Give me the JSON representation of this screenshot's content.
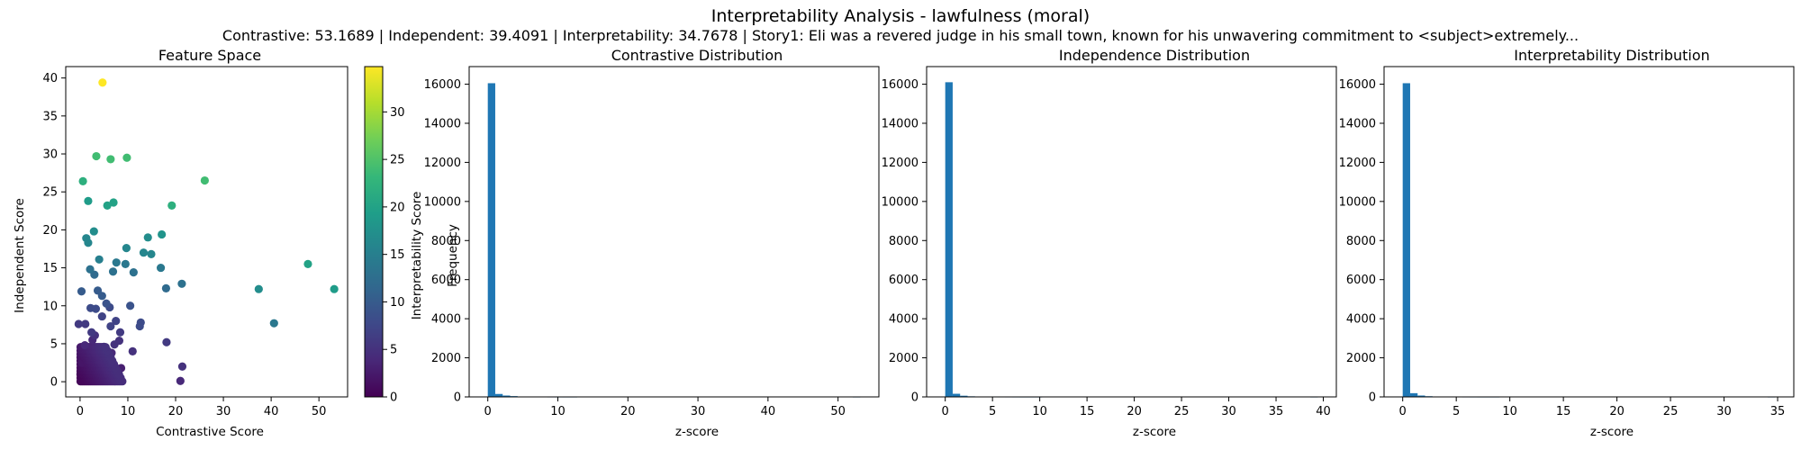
{
  "figure": {
    "title": "Interpretability Analysis - lawfulness (moral)",
    "subtitle": "Contrastive: 53.1689 | Independent: 39.4091 | Interpretability: 34.7678 | Story1: Eli was a revered judge in his small town, known for his unwavering commitment to <subject>extremely..."
  },
  "colors": {
    "bar": "#1f77b4",
    "viridis": [
      "#440154",
      "#482878",
      "#3e4989",
      "#31688e",
      "#26828e",
      "#1f9e89",
      "#35b779",
      "#6ece58",
      "#b5de2b",
      "#fde725"
    ]
  },
  "chart_data": [
    {
      "type": "scatter",
      "title": "Feature Space",
      "xlabel": "Contrastive Score",
      "ylabel": "Independent Score",
      "xlim": [
        -3,
        56
      ],
      "ylim": [
        -2,
        41.5
      ],
      "xticks": [
        0,
        10,
        20,
        30,
        40,
        50
      ],
      "yticks": [
        0,
        5,
        10,
        15,
        20,
        25,
        30,
        35,
        40
      ],
      "colorbar": {
        "label": "Interpretability Score",
        "range": [
          0,
          34.77
        ],
        "ticks": [
          0,
          5,
          10,
          15,
          20,
          25,
          30
        ]
      },
      "points": [
        [
          4.7,
          39.4,
          34.8
        ],
        [
          3.4,
          29.7,
          24
        ],
        [
          6.4,
          29.3,
          24
        ],
        [
          9.8,
          29.5,
          24
        ],
        [
          26.1,
          26.5,
          24
        ],
        [
          0.6,
          26.4,
          22
        ],
        [
          7.0,
          23.6,
          20
        ],
        [
          5.7,
          23.2,
          20
        ],
        [
          1.7,
          23.8,
          19
        ],
        [
          19.2,
          23.2,
          22
        ],
        [
          2.9,
          19.8,
          17
        ],
        [
          1.3,
          18.9,
          16
        ],
        [
          1.7,
          18.3,
          16
        ],
        [
          14.2,
          19.0,
          17
        ],
        [
          17.1,
          19.4,
          18
        ],
        [
          9.7,
          17.6,
          16
        ],
        [
          13.3,
          17.0,
          16
        ],
        [
          14.9,
          16.8,
          16
        ],
        [
          47.7,
          15.5,
          20
        ],
        [
          53.2,
          12.2,
          19
        ],
        [
          37.4,
          12.2,
          17
        ],
        [
          40.6,
          7.7,
          14
        ],
        [
          4.0,
          16.1,
          15
        ],
        [
          7.6,
          15.7,
          14
        ],
        [
          9.5,
          15.5,
          14
        ],
        [
          2.1,
          14.8,
          13
        ],
        [
          6.9,
          14.5,
          13
        ],
        [
          3.0,
          14.1,
          12
        ],
        [
          11.2,
          14.4,
          13
        ],
        [
          16.9,
          15.0,
          14
        ],
        [
          21.3,
          12.9,
          13
        ],
        [
          18.0,
          12.3,
          12
        ],
        [
          0.3,
          11.9,
          10
        ],
        [
          3.7,
          12.0,
          10
        ],
        [
          4.6,
          11.3,
          10
        ],
        [
          5.5,
          10.3,
          9
        ],
        [
          10.5,
          10.0,
          9
        ],
        [
          12.7,
          7.8,
          8
        ],
        [
          12.5,
          7.3,
          8
        ],
        [
          2.2,
          9.7,
          8
        ],
        [
          3.3,
          9.6,
          8
        ],
        [
          6.2,
          9.8,
          8
        ],
        [
          4.6,
          8.6,
          7
        ],
        [
          7.5,
          8.0,
          7
        ],
        [
          6.4,
          7.3,
          7
        ],
        [
          8.4,
          6.5,
          6
        ],
        [
          2.4,
          6.5,
          6
        ],
        [
          1.1,
          7.6,
          6
        ],
        [
          -0.3,
          7.6,
          6
        ],
        [
          7.2,
          4.9,
          5
        ],
        [
          8.2,
          5.4,
          5
        ],
        [
          11.0,
          4.0,
          5
        ],
        [
          18.1,
          5.2,
          6
        ],
        [
          21.4,
          2.0,
          5
        ],
        [
          21.0,
          0.1,
          4
        ],
        [
          7.5,
          0.2,
          3
        ],
        [
          8.6,
          1.8,
          3
        ],
        [
          6.6,
          3.8,
          4
        ],
        [
          5.0,
          4.6,
          4
        ],
        [
          4.0,
          3.5,
          3
        ],
        [
          3.1,
          6.1,
          5
        ],
        [
          1.0,
          4.8,
          4
        ],
        [
          2.6,
          5.5,
          4
        ],
        [
          0.4,
          2.5,
          2
        ],
        [
          0.8,
          1.4,
          1
        ],
        [
          1.6,
          0.6,
          1
        ],
        [
          2.7,
          1.7,
          2
        ],
        [
          3.8,
          0.9,
          2
        ],
        [
          5.1,
          1.4,
          2
        ],
        [
          6.0,
          2.6,
          3
        ],
        [
          0.2,
          0.1,
          0.5
        ],
        [
          1.3,
          2.9,
          2
        ],
        [
          2.0,
          4.0,
          3
        ],
        [
          0.6,
          3.6,
          2
        ],
        [
          4.4,
          2.3,
          2
        ],
        [
          3.3,
          3.0,
          2
        ],
        [
          0.1,
          1.0,
          0.5
        ],
        [
          1.9,
          1.2,
          1
        ]
      ]
    },
    {
      "type": "bar",
      "title": "Contrastive Distribution",
      "xlabel": "z-score",
      "ylabel": "Frequency",
      "xlim": [
        -2.66,
        55.83
      ],
      "ylim": [
        0,
        16900
      ],
      "xticks": [
        0,
        10,
        20,
        30,
        40,
        50
      ],
      "yticks": [
        0,
        2000,
        4000,
        6000,
        8000,
        10000,
        12000,
        14000,
        16000
      ],
      "bin_start": 0,
      "bin_end": 53.1689,
      "values": [
        16050,
        150,
        70,
        40,
        22,
        12,
        8,
        5,
        3,
        2,
        1,
        1,
        0,
        0,
        0,
        0,
        0,
        0,
        0,
        0,
        0,
        0,
        0,
        0,
        0,
        0,
        0,
        0,
        0,
        0,
        0,
        0,
        0,
        0,
        0,
        0,
        0,
        0,
        0,
        0,
        0,
        0,
        0,
        0,
        0,
        0,
        0,
        0,
        0,
        1
      ]
    },
    {
      "type": "bar",
      "title": "Independence Distribution",
      "xlabel": "z-score",
      "ylabel": "",
      "xlim": [
        -1.97,
        41.38
      ],
      "ylim": [
        0,
        16900
      ],
      "xticks": [
        0,
        5,
        10,
        15,
        20,
        25,
        30,
        35,
        40
      ],
      "yticks": [
        0,
        2000,
        4000,
        6000,
        8000,
        10000,
        12000,
        14000,
        16000
      ],
      "bin_start": 0,
      "bin_end": 39.4091,
      "values": [
        16100,
        160,
        60,
        30,
        15,
        10,
        6,
        4,
        3,
        2,
        1,
        1,
        1,
        0,
        0,
        0,
        0,
        0,
        0,
        0,
        0,
        0,
        0,
        0,
        0,
        0,
        0,
        0,
        0,
        0,
        0,
        0,
        0,
        0,
        0,
        0,
        0,
        0,
        0,
        0,
        0,
        0,
        0,
        0,
        0,
        0,
        0,
        0,
        0,
        1
      ]
    },
    {
      "type": "bar",
      "title": "Interpretability Distribution",
      "xlabel": "z-score",
      "ylabel": "",
      "xlim": [
        -1.74,
        36.51
      ],
      "ylim": [
        0,
        16900
      ],
      "xticks": [
        0,
        5,
        10,
        15,
        20,
        25,
        30,
        35
      ],
      "yticks": [
        0,
        2000,
        4000,
        6000,
        8000,
        10000,
        12000,
        14000,
        16000
      ],
      "bin_start": 0,
      "bin_end": 34.7678,
      "values": [
        16050,
        190,
        70,
        35,
        20,
        12,
        8,
        5,
        3,
        2,
        1,
        1,
        1,
        0,
        0,
        0,
        0,
        0,
        0,
        0,
        0,
        0,
        0,
        0,
        0,
        0,
        0,
        0,
        0,
        0,
        0,
        0,
        0,
        0,
        0,
        0,
        0,
        0,
        0,
        0,
        0,
        0,
        0,
        0,
        0,
        0,
        0,
        0,
        0,
        1
      ]
    }
  ]
}
